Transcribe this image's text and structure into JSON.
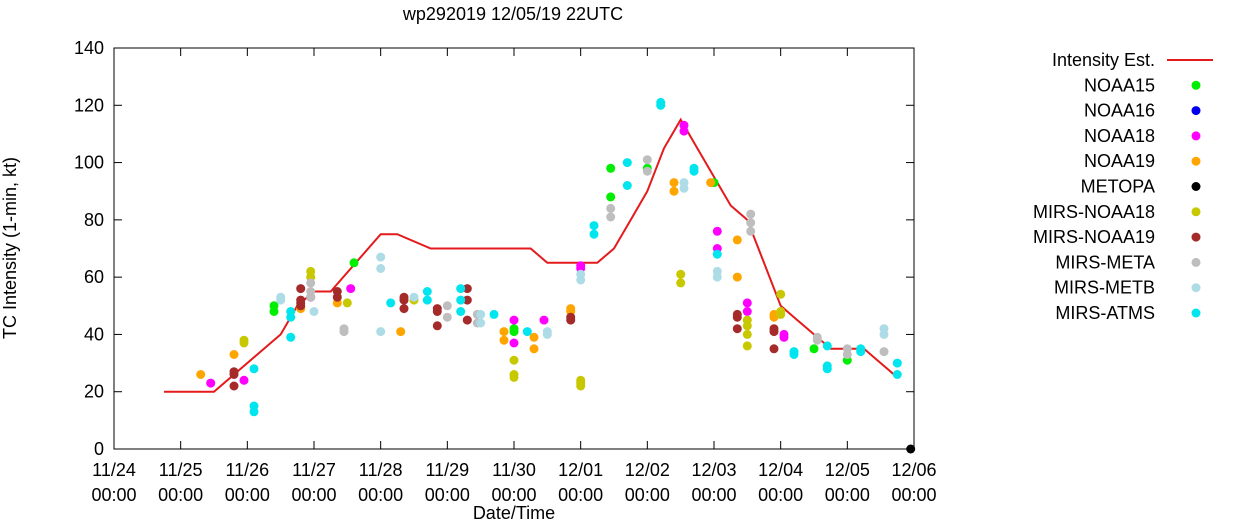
{
  "chart_data": {
    "type": "scatter",
    "title": "wp292019 12/05/19 22UTC",
    "xlabel": "Date/Time",
    "ylabel": "TC Intensity (1-min, kt)",
    "xlim": [
      0,
      12
    ],
    "ylim": [
      0,
      140
    ],
    "yticks": [
      0,
      20,
      40,
      60,
      80,
      100,
      120,
      140
    ],
    "xticks": [
      {
        "date": "11/24",
        "time": "00:00"
      },
      {
        "date": "11/25",
        "time": "00:00"
      },
      {
        "date": "11/26",
        "time": "00:00"
      },
      {
        "date": "11/27",
        "time": "00:00"
      },
      {
        "date": "11/28",
        "time": "00:00"
      },
      {
        "date": "11/29",
        "time": "00:00"
      },
      {
        "date": "11/30",
        "time": "00:00"
      },
      {
        "date": "12/01",
        "time": "00:00"
      },
      {
        "date": "12/02",
        "time": "00:00"
      },
      {
        "date": "12/03",
        "time": "00:00"
      },
      {
        "date": "12/04",
        "time": "00:00"
      },
      {
        "date": "12/05",
        "time": "00:00"
      },
      {
        "date": "12/06",
        "time": "00:00"
      }
    ],
    "legend_position": "right",
    "line": {
      "name": "Intensity Est.",
      "color": "#e41a1c",
      "x": [
        0.75,
        1.5,
        2.5,
        2.75,
        3.0,
        3.25,
        4.0,
        4.25,
        4.75,
        5.0,
        5.25,
        5.5,
        6.25,
        6.5,
        6.75,
        7.0,
        7.25,
        7.5,
        7.75,
        8.0,
        8.25,
        8.5,
        8.75,
        9.0,
        9.25,
        9.5,
        9.75,
        10.0,
        10.25,
        10.5,
        10.75,
        11.0,
        11.25,
        11.5,
        11.75
      ],
      "y": [
        20,
        20,
        40,
        50,
        55,
        55,
        75,
        75,
        70,
        70,
        70,
        70,
        70,
        65,
        65,
        65,
        65,
        70,
        80,
        90,
        105,
        115,
        105,
        95,
        85,
        80,
        65,
        50,
        45,
        40,
        35,
        35,
        35,
        30,
        25
      ]
    },
    "series": [
      {
        "name": "NOAA15",
        "color": "#00ee00",
        "points": [
          [
            2.4,
            48
          ],
          [
            2.4,
            50
          ],
          [
            3.6,
            65
          ],
          [
            6.0,
            41
          ],
          [
            6.0,
            42
          ],
          [
            7.45,
            88
          ],
          [
            7.45,
            98
          ],
          [
            8.0,
            98
          ],
          [
            9.0,
            93
          ],
          [
            10.5,
            35
          ],
          [
            11.0,
            31
          ]
        ]
      },
      {
        "name": "NOAA16",
        "color": "#0000ee",
        "points": []
      },
      {
        "name": "NOAA18",
        "color": "#ff00ff",
        "points": [
          [
            1.45,
            23
          ],
          [
            1.95,
            24
          ],
          [
            2.95,
            53
          ],
          [
            3.55,
            56
          ],
          [
            6.0,
            37
          ],
          [
            6.0,
            45
          ],
          [
            6.45,
            45
          ],
          [
            7.0,
            63
          ],
          [
            7.0,
            64
          ],
          [
            8.55,
            111
          ],
          [
            8.55,
            113
          ],
          [
            9.05,
            70
          ],
          [
            9.05,
            76
          ],
          [
            9.5,
            48
          ],
          [
            9.5,
            51
          ],
          [
            10.05,
            39
          ],
          [
            10.05,
            40
          ]
        ]
      },
      {
        "name": "NOAA19",
        "color": "#ffa500",
        "points": [
          [
            1.3,
            26
          ],
          [
            1.8,
            33
          ],
          [
            2.8,
            49
          ],
          [
            3.35,
            51
          ],
          [
            4.3,
            41
          ],
          [
            5.85,
            38
          ],
          [
            5.85,
            41
          ],
          [
            6.3,
            35
          ],
          [
            6.3,
            39
          ],
          [
            6.85,
            48
          ],
          [
            6.85,
            49
          ],
          [
            8.4,
            90
          ],
          [
            8.4,
            93
          ],
          [
            8.95,
            93
          ],
          [
            9.35,
            60
          ],
          [
            9.35,
            73
          ],
          [
            9.9,
            46
          ],
          [
            9.9,
            47
          ]
        ]
      },
      {
        "name": "METOPA",
        "color": "#000000",
        "points": [
          [
            11.95,
            0
          ]
        ]
      },
      {
        "name": "MIRS-NOAA18",
        "color": "#c8c800",
        "points": [
          [
            1.95,
            37
          ],
          [
            1.95,
            38
          ],
          [
            2.95,
            60
          ],
          [
            2.95,
            62
          ],
          [
            3.5,
            51
          ],
          [
            4.5,
            52
          ],
          [
            6.0,
            25
          ],
          [
            6.0,
            26
          ],
          [
            6.0,
            31
          ],
          [
            7.0,
            22
          ],
          [
            7.0,
            23
          ],
          [
            7.0,
            24
          ],
          [
            8.5,
            58
          ],
          [
            8.5,
            61
          ],
          [
            9.5,
            36
          ],
          [
            9.5,
            40
          ],
          [
            9.5,
            43
          ],
          [
            9.5,
            45
          ],
          [
            10.0,
            47
          ],
          [
            10.0,
            48
          ],
          [
            10.0,
            54
          ]
        ]
      },
      {
        "name": "MIRS-NOAA19",
        "color": "#a52a2a",
        "points": [
          [
            1.8,
            22
          ],
          [
            1.8,
            26
          ],
          [
            1.8,
            27
          ],
          [
            2.8,
            50
          ],
          [
            2.8,
            51
          ],
          [
            2.8,
            52
          ],
          [
            2.8,
            56
          ],
          [
            3.35,
            53
          ],
          [
            3.35,
            55
          ],
          [
            4.35,
            49
          ],
          [
            4.35,
            52
          ],
          [
            4.35,
            53
          ],
          [
            4.85,
            43
          ],
          [
            4.85,
            48
          ],
          [
            4.85,
            49
          ],
          [
            5.3,
            45
          ],
          [
            5.3,
            52
          ],
          [
            5.3,
            56
          ],
          [
            6.85,
            45
          ],
          [
            6.85,
            46
          ],
          [
            9.35,
            42
          ],
          [
            9.35,
            46
          ],
          [
            9.35,
            47
          ],
          [
            9.9,
            35
          ],
          [
            9.9,
            41
          ],
          [
            9.9,
            42
          ]
        ]
      },
      {
        "name": "MIRS-META",
        "color": "#bebebe",
        "points": [
          [
            2.95,
            53
          ],
          [
            2.95,
            55
          ],
          [
            2.95,
            58
          ],
          [
            3.45,
            41
          ],
          [
            3.45,
            42
          ],
          [
            5.0,
            46
          ],
          [
            5.0,
            50
          ],
          [
            5.45,
            44
          ],
          [
            5.45,
            47
          ],
          [
            7.45,
            81
          ],
          [
            7.45,
            84
          ],
          [
            8.0,
            97
          ],
          [
            8.0,
            101
          ],
          [
            9.55,
            76
          ],
          [
            9.55,
            79
          ],
          [
            9.55,
            82
          ],
          [
            10.55,
            38
          ],
          [
            10.55,
            39
          ],
          [
            11.0,
            33
          ],
          [
            11.0,
            35
          ],
          [
            11.55,
            34
          ]
        ]
      },
      {
        "name": "MIRS-METB",
        "color": "#aedce6",
        "points": [
          [
            2.5,
            52
          ],
          [
            2.5,
            53
          ],
          [
            3.0,
            48
          ],
          [
            4.0,
            63
          ],
          [
            4.0,
            67
          ],
          [
            4.0,
            41
          ],
          [
            4.5,
            53
          ],
          [
            5.5,
            44
          ],
          [
            5.5,
            47
          ],
          [
            6.5,
            40
          ],
          [
            6.5,
            41
          ],
          [
            7.0,
            59
          ],
          [
            7.0,
            61
          ],
          [
            8.55,
            91
          ],
          [
            8.55,
            93
          ],
          [
            9.05,
            60
          ],
          [
            9.05,
            62
          ],
          [
            11.55,
            40
          ],
          [
            11.55,
            42
          ]
        ]
      },
      {
        "name": "MIRS-ATMS",
        "color": "#00e5ee",
        "points": [
          [
            2.1,
            13
          ],
          [
            2.1,
            15
          ],
          [
            2.1,
            28
          ],
          [
            2.65,
            39
          ],
          [
            2.65,
            46
          ],
          [
            2.65,
            48
          ],
          [
            4.15,
            51
          ],
          [
            4.7,
            52
          ],
          [
            4.7,
            55
          ],
          [
            5.2,
            52
          ],
          [
            5.2,
            56
          ],
          [
            5.2,
            48
          ],
          [
            5.7,
            47
          ],
          [
            6.2,
            41
          ],
          [
            7.2,
            75
          ],
          [
            7.2,
            78
          ],
          [
            7.7,
            92
          ],
          [
            7.7,
            100
          ],
          [
            8.2,
            120
          ],
          [
            8.2,
            121
          ],
          [
            8.7,
            97
          ],
          [
            8.7,
            98
          ],
          [
            9.05,
            68
          ],
          [
            10.2,
            33
          ],
          [
            10.2,
            34
          ],
          [
            10.7,
            28
          ],
          [
            10.7,
            29
          ],
          [
            10.7,
            36
          ],
          [
            11.2,
            34
          ],
          [
            11.2,
            35
          ],
          [
            11.75,
            26
          ],
          [
            11.75,
            30
          ]
        ]
      }
    ]
  }
}
